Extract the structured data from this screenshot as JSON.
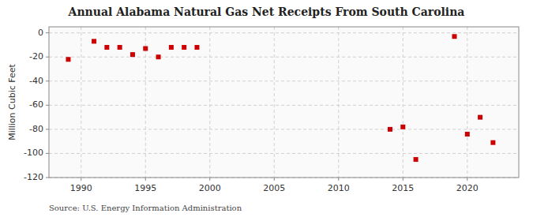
{
  "chart_data": {
    "type": "scatter",
    "title": "Annual Alabama Natural Gas Net Receipts From South Carolina",
    "y_label": "Million Cubic Feet",
    "annotations": [
      "Source: U.S. Energy Information Administration"
    ],
    "x": [
      1989,
      1991,
      1992,
      1993,
      1994,
      1995,
      1996,
      1997,
      1998,
      1999,
      2019,
      2014,
      2015,
      2016,
      2020,
      2021,
      2022
    ],
    "values": [
      -22,
      -7,
      -12,
      -12,
      -18,
      -13,
      -20,
      -12,
      -12,
      -12,
      -3,
      -80,
      -78,
      -105,
      -84,
      -70,
      -91
    ],
    "color": "#cc0000",
    "marker": "square",
    "xlim": [
      1987.5,
      2024
    ],
    "ylim": [
      -120,
      5
    ],
    "xticks": [
      1990,
      1995,
      2000,
      2005,
      2010,
      2015,
      2020
    ],
    "yticks": [
      0,
      -20,
      -40,
      -60,
      -80,
      -100,
      -120
    ],
    "grid": true
  }
}
